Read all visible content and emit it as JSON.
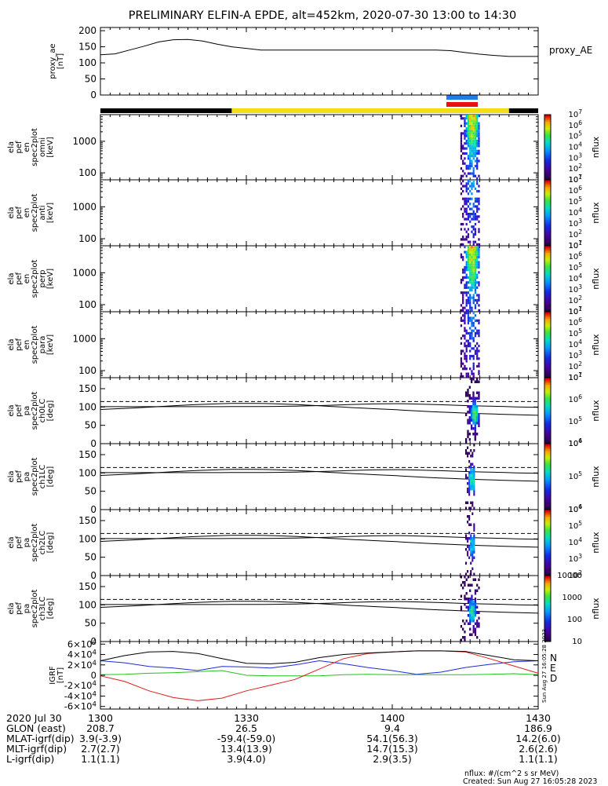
{
  "title": "PRELIMINARY ELFIN-A EPDE, alt=452km, 2020-07-30 13:00 to 14:30",
  "colors": {
    "science_zone_blue": "#1e7ee6",
    "science_zone_red": "#e81010",
    "sunlit_bar": "#f5dc14",
    "shadow_bar": "#000000",
    "grf_n": "#1e2bd6",
    "grf_e": "#22c21c",
    "grf_d": "#e01c1c",
    "grf_mag": "#000000"
  },
  "footer": {
    "rows": [
      {
        "label": "2020 Jul 30",
        "values": [
          "1300",
          "1330",
          "1400",
          "1430"
        ]
      },
      {
        "label": "GLON (east)",
        "values": [
          "208.7",
          "26.5",
          "9.4",
          "186.9"
        ]
      },
      {
        "label": "MLAT-igrf(dip)",
        "values": [
          "3.9(-3.9)",
          "-59.4(-59.0)",
          "54.1(56.3)",
          "14.2(6.0)"
        ]
      },
      {
        "label": "MLT-igrf(dip)",
        "values": [
          "2.7(2.7)",
          "13.4(13.9)",
          "14.7(15.3)",
          "2.6(2.6)"
        ]
      },
      {
        "label": "L-igrf(dip)",
        "values": [
          "1.1(1.1)",
          "3.9(4.0)",
          "2.9(3.5)",
          "1.1(1.1)"
        ]
      }
    ],
    "note": "nflux: #/(cm^2 s sr MeV)",
    "created": "Created: Sun Aug 27 16:05:28 2023",
    "side_stamp": "Sun Aug 27 16:05:28 2023"
  },
  "chart_data": [
    {
      "type": "line",
      "panel": "proxy_ae",
      "ylabel": [
        "proxy_ae",
        "[nT]"
      ],
      "legend": "proxy_AE",
      "ylim": [
        0,
        210
      ],
      "yticks": [
        "0",
        "50",
        "100",
        "150",
        "200"
      ],
      "x": [
        "13:00",
        "13:03",
        "13:06",
        "13:09",
        "13:12",
        "13:15",
        "13:18",
        "13:21",
        "13:24",
        "13:27",
        "13:30",
        "13:33",
        "13:36",
        "13:39",
        "13:42",
        "13:45",
        "13:48",
        "13:51",
        "13:54",
        "13:57",
        "14:00",
        "14:03",
        "14:06",
        "14:09",
        "14:12",
        "14:15",
        "14:18",
        "14:21",
        "14:24",
        "14:27",
        "14:30"
      ],
      "values": [
        125,
        128,
        140,
        152,
        165,
        172,
        173,
        168,
        158,
        150,
        145,
        140,
        140,
        140,
        140,
        140,
        140,
        140,
        140,
        140,
        140,
        140,
        140,
        140,
        138,
        132,
        127,
        123,
        120,
        120,
        120
      ]
    },
    {
      "type": "heatmap",
      "panel": "omni",
      "ylabel": [
        "ela",
        "pef",
        "en",
        "spec2plot",
        "omni",
        "[keV]"
      ],
      "yscale": "log",
      "ylim": [
        60,
        7000
      ],
      "yticks": [
        "100",
        "1000"
      ],
      "colorbar": {
        "scale": "log",
        "labels": [
          "10^1",
          "10^2",
          "10^3",
          "10^4",
          "10^5",
          "10^6",
          "10^7"
        ],
        "title": "nflux"
      },
      "time_range": [
        "14:14",
        "14:18"
      ]
    },
    {
      "type": "heatmap",
      "panel": "anti",
      "ylabel": [
        "ela",
        "pef",
        "en",
        "spec2plot",
        "anti",
        "[keV]"
      ],
      "yscale": "log",
      "ylim": [
        60,
        7000
      ],
      "yticks": [
        "100",
        "1000"
      ],
      "colorbar": {
        "scale": "log",
        "labels": [
          "10^1",
          "10^2",
          "10^3",
          "10^4",
          "10^5",
          "10^6",
          "10^7"
        ],
        "title": "nflux"
      },
      "time_range": [
        "14:14",
        "14:18"
      ]
    },
    {
      "type": "heatmap",
      "panel": "perp",
      "ylabel": [
        "ela",
        "pef",
        "en",
        "spec2plot",
        "perp",
        "[keV]"
      ],
      "yscale": "log",
      "ylim": [
        60,
        7000
      ],
      "yticks": [
        "100",
        "1000"
      ],
      "colorbar": {
        "scale": "log",
        "labels": [
          "10^1",
          "10^2",
          "10^3",
          "10^4",
          "10^5",
          "10^6",
          "10^7"
        ],
        "title": "nflux"
      },
      "time_range": [
        "14:14",
        "14:18"
      ]
    },
    {
      "type": "heatmap",
      "panel": "para",
      "ylabel": [
        "ela",
        "pef",
        "en",
        "spec2plot",
        "para",
        "[keV]"
      ],
      "yscale": "log",
      "ylim": [
        60,
        7000
      ],
      "yticks": [
        "100",
        "1000"
      ],
      "colorbar": {
        "scale": "log",
        "labels": [
          "10^1",
          "10^2",
          "10^3",
          "10^4",
          "10^5",
          "10^6",
          "10^7"
        ],
        "title": "nflux"
      },
      "time_range": [
        "14:14",
        "14:18"
      ]
    },
    {
      "type": "heatmap",
      "panel": "ch0LC",
      "ylabel": [
        "ela",
        "pef",
        "pa",
        "spec2plot",
        "ch0LC",
        "[deg]"
      ],
      "ylim": [
        0,
        180
      ],
      "yticks": [
        "0",
        "50",
        "100",
        "150"
      ],
      "colorbar": {
        "scale": "log",
        "labels": [
          "10^4",
          "10^5",
          "10^6",
          "10^7"
        ],
        "title": "nflux"
      },
      "time_range": [
        "14:15",
        "14:18"
      ]
    },
    {
      "type": "heatmap",
      "panel": "ch1LC",
      "ylabel": [
        "ela",
        "pef",
        "pa",
        "spec2plot",
        "ch1LC",
        "[deg]"
      ],
      "ylim": [
        0,
        180
      ],
      "yticks": [
        "0",
        "50",
        "100",
        "150"
      ],
      "colorbar": {
        "scale": "log",
        "labels": [
          "10^4",
          "10^5",
          "10^6"
        ],
        "title": "nflux"
      },
      "time_range": [
        "14:15",
        "14:17"
      ]
    },
    {
      "type": "heatmap",
      "panel": "ch2LC",
      "ylabel": [
        "ela",
        "pef",
        "pa",
        "spec2plot",
        "ch2LC",
        "[deg]"
      ],
      "ylim": [
        0,
        180
      ],
      "yticks": [
        "0",
        "50",
        "100",
        "150"
      ],
      "colorbar": {
        "scale": "log",
        "labels": [
          "10^2",
          "10^3",
          "10^4",
          "10^5",
          "10^6"
        ],
        "title": "nflux"
      },
      "time_range": [
        "14:15",
        "14:17"
      ]
    },
    {
      "type": "heatmap",
      "panel": "ch3LC",
      "ylabel": [
        "ela",
        "pef",
        "pa",
        "spec2plot",
        "ch3LC",
        "[deg]"
      ],
      "ylim": [
        0,
        180
      ],
      "yticks": [
        "0",
        "50",
        "100",
        "150"
      ],
      "colorbar": {
        "scale": "log",
        "labels": [
          "10",
          "100",
          "1000",
          "10000"
        ],
        "title": "nflux"
      },
      "time_range": [
        "14:14",
        "14:18"
      ]
    },
    {
      "type": "line",
      "panel": "grf",
      "ylabel": [
        "IGRF",
        "[nT]"
      ],
      "ylim": [
        -65000,
        65000
      ],
      "yticks": [
        "-6x10^4",
        "-4x10^4",
        "-2x10^4",
        "0",
        "2x10^4",
        "4x10^4",
        "6x10^4"
      ],
      "legend": [
        "N",
        "E",
        "D"
      ],
      "x": [
        "13:00",
        "13:05",
        "13:10",
        "13:15",
        "13:20",
        "13:25",
        "13:30",
        "13:35",
        "13:40",
        "13:45",
        "13:50",
        "13:55",
        "14:00",
        "14:05",
        "14:10",
        "14:15",
        "14:20",
        "14:25",
        "14:30"
      ],
      "series": [
        {
          "name": "N",
          "values": [
            28000,
            24000,
            17000,
            14000,
            9000,
            17000,
            16000,
            14000,
            20000,
            28000,
            22000,
            15000,
            9000,
            2000,
            6000,
            15000,
            21000,
            26000,
            28000
          ]
        },
        {
          "name": "E",
          "values": [
            1000,
            2000,
            4000,
            5000,
            7000,
            9000,
            0,
            -1000,
            -1000,
            -1000,
            1000,
            2000,
            1000,
            1000,
            1000,
            1000,
            2000,
            3000,
            1000
          ]
        },
        {
          "name": "D",
          "values": [
            -1000,
            -12000,
            -30000,
            -43000,
            -49000,
            -44000,
            -30000,
            -19000,
            -8000,
            12000,
            32000,
            42000,
            45000,
            47000,
            47000,
            45000,
            32000,
            18000,
            4000
          ]
        },
        {
          "name": "",
          "values": [
            28000,
            38000,
            45000,
            46000,
            42000,
            32000,
            23000,
            22000,
            25000,
            34000,
            40000,
            43000,
            45000,
            47000,
            47000,
            46000,
            38000,
            30000,
            28000
          ]
        }
      ]
    }
  ]
}
